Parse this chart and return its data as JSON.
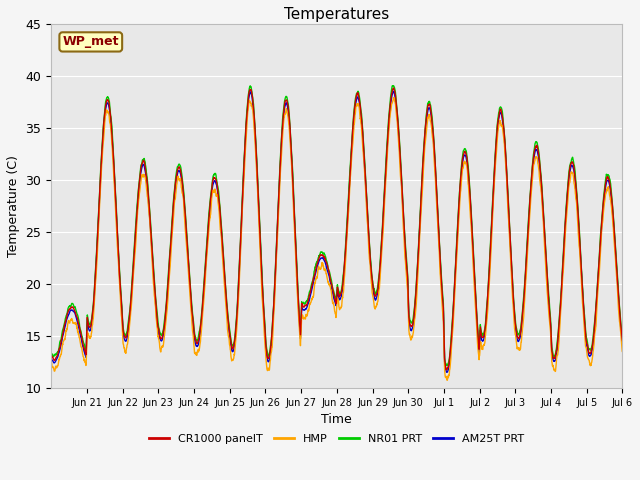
{
  "title": "Temperatures",
  "xlabel": "Time",
  "ylabel": "Temperature (C)",
  "ylim": [
    10,
    45
  ],
  "fig_facecolor": "#f5f5f5",
  "ax_facecolor": "#e8e8e8",
  "legend_labels": [
    "CR1000 panelT",
    "HMP",
    "NR01 PRT",
    "AM25T PRT"
  ],
  "legend_colors": [
    "#cc0000",
    "#ffa500",
    "#00cc00",
    "#0000cc"
  ],
  "station_label": "WP_met",
  "tick_labels": [
    "Jun 21",
    "Jun 22",
    "Jun 23",
    "Jun 24",
    "Jun 25",
    "Jun 26",
    "Jun 27",
    "Jun 28",
    "Jun 29",
    "Jun 30",
    "Jul 1",
    "Jul 2",
    "Jul 3",
    "Jul 4",
    "Jul 5",
    "Jul 6"
  ],
  "tick_positions": [
    1,
    2,
    3,
    4,
    5,
    6,
    7,
    8,
    9,
    10,
    11,
    12,
    13,
    14,
    15,
    16
  ],
  "xlim": [
    0,
    16
  ],
  "daily_peaks": [
    17.5,
    37.5,
    31.5,
    31.0,
    30.0,
    38.5,
    37.5,
    22.5,
    38.0,
    38.5,
    37.0,
    32.5,
    36.5,
    33.0,
    31.5,
    30.0
  ],
  "daily_troughs": [
    12.5,
    15.5,
    14.5,
    14.5,
    14.0,
    13.5,
    12.5,
    17.5,
    18.5,
    18.5,
    15.5,
    11.5,
    14.5,
    14.5,
    12.5,
    13.0
  ],
  "points_per_day": 144,
  "linewidth": 1.0,
  "title_fontsize": 11,
  "axis_fontsize": 9,
  "tick_fontsize": 7,
  "legend_fontsize": 8
}
